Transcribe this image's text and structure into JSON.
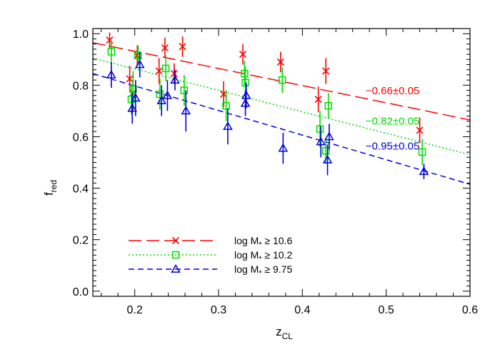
{
  "chart_data": {
    "type": "scatter",
    "xlabel_main": "z",
    "xlabel_sub": "CL",
    "ylabel_main": "f",
    "ylabel_sub": "red",
    "xlim": [
      0.15,
      0.6
    ],
    "ylim": [
      -0.02,
      1.02
    ],
    "x_ticks": [
      0.2,
      0.3,
      0.4,
      0.5,
      0.6
    ],
    "x_tick_labels": [
      "0.2",
      "0.3",
      "0.4",
      "0.5",
      "0.6"
    ],
    "y_ticks": [
      0.0,
      0.2,
      0.4,
      0.6,
      0.8,
      1.0
    ],
    "y_tick_labels": [
      "0.0",
      "0.2",
      "0.4",
      "0.6",
      "0.8",
      "1.0"
    ],
    "grid": false,
    "legend_position": "bottom-left",
    "series": [
      {
        "key": "red",
        "name_prefix": "log M",
        "name_star": "*",
        "name_relation": "≥",
        "name_value": "10.6",
        "color": "#ff0000",
        "marker": "x",
        "line_style": "long-dash",
        "fit": {
          "x": [
            0.15,
            0.6
          ],
          "y": [
            0.965,
            0.665
          ]
        },
        "slope_label": "−0.66±0.05",
        "points": [
          {
            "x": 0.17,
            "y": 0.975,
            "err": 0.03
          },
          {
            "x": 0.194,
            "y": 0.825,
            "err": 0.05
          },
          {
            "x": 0.198,
            "y": 0.77,
            "err": 0.07
          },
          {
            "x": 0.203,
            "y": 0.915,
            "err": 0.04
          },
          {
            "x": 0.229,
            "y": 0.855,
            "err": 0.05
          },
          {
            "x": 0.236,
            "y": 0.945,
            "err": 0.04
          },
          {
            "x": 0.247,
            "y": 0.845,
            "err": 0.04
          },
          {
            "x": 0.257,
            "y": 0.95,
            "err": 0.04
          },
          {
            "x": 0.306,
            "y": 0.765,
            "err": 0.05
          },
          {
            "x": 0.329,
            "y": 0.92,
            "err": 0.04
          },
          {
            "x": 0.374,
            "y": 0.89,
            "err": 0.04
          },
          {
            "x": 0.419,
            "y": 0.745,
            "err": 0.05
          },
          {
            "x": 0.428,
            "y": 0.855,
            "err": 0.05
          },
          {
            "x": 0.54,
            "y": 0.625,
            "err": 0.05
          }
        ]
      },
      {
        "key": "green",
        "name_prefix": "log M",
        "name_star": "*",
        "name_relation": "≥",
        "name_value": "10.2",
        "color": "#00dd00",
        "marker": "square",
        "line_style": "dotted",
        "fit": {
          "x": [
            0.15,
            0.6
          ],
          "y": [
            0.905,
            0.53
          ]
        },
        "slope_label": "−0.82±0.05",
        "points": [
          {
            "x": 0.172,
            "y": 0.93,
            "err": 0.04
          },
          {
            "x": 0.196,
            "y": 0.745,
            "err": 0.06
          },
          {
            "x": 0.198,
            "y": 0.785,
            "err": 0.07
          },
          {
            "x": 0.204,
            "y": 0.915,
            "err": 0.04
          },
          {
            "x": 0.23,
            "y": 0.765,
            "err": 0.06
          },
          {
            "x": 0.237,
            "y": 0.865,
            "err": 0.05
          },
          {
            "x": 0.259,
            "y": 0.78,
            "err": 0.06
          },
          {
            "x": 0.309,
            "y": 0.72,
            "err": 0.06
          },
          {
            "x": 0.331,
            "y": 0.845,
            "err": 0.05
          },
          {
            "x": 0.332,
            "y": 0.81,
            "err": 0.06
          },
          {
            "x": 0.376,
            "y": 0.82,
            "err": 0.05
          },
          {
            "x": 0.421,
            "y": 0.63,
            "err": 0.07
          },
          {
            "x": 0.428,
            "y": 0.545,
            "err": 0.05
          },
          {
            "x": 0.431,
            "y": 0.72,
            "err": 0.05
          },
          {
            "x": 0.543,
            "y": 0.54,
            "err": 0.05
          }
        ]
      },
      {
        "key": "blue",
        "name_prefix": "log M",
        "name_star": "*",
        "name_relation": "≥",
        "name_value": "9.75",
        "color": "#0000dd",
        "marker": "triangle",
        "line_style": "dashed",
        "fit": {
          "x": [
            0.15,
            0.6
          ],
          "y": [
            0.845,
            0.415
          ]
        },
        "slope_label": "−0.95±0.05",
        "points": [
          {
            "x": 0.172,
            "y": 0.84,
            "err": 0.05
          },
          {
            "x": 0.197,
            "y": 0.71,
            "err": 0.06
          },
          {
            "x": 0.201,
            "y": 0.75,
            "err": 0.07
          },
          {
            "x": 0.206,
            "y": 0.88,
            "err": 0.05
          },
          {
            "x": 0.232,
            "y": 0.74,
            "err": 0.06
          },
          {
            "x": 0.239,
            "y": 0.76,
            "err": 0.06
          },
          {
            "x": 0.248,
            "y": 0.82,
            "err": 0.04
          },
          {
            "x": 0.261,
            "y": 0.7,
            "err": 0.08
          },
          {
            "x": 0.311,
            "y": 0.64,
            "err": 0.07
          },
          {
            "x": 0.332,
            "y": 0.73,
            "err": 0.05
          },
          {
            "x": 0.333,
            "y": 0.76,
            "err": 0.05
          },
          {
            "x": 0.377,
            "y": 0.555,
            "err": 0.06
          },
          {
            "x": 0.422,
            "y": 0.58,
            "err": 0.06
          },
          {
            "x": 0.43,
            "y": 0.51,
            "err": 0.06
          },
          {
            "x": 0.432,
            "y": 0.6,
            "err": 0.05
          },
          {
            "x": 0.545,
            "y": 0.465,
            "err": 0.03
          }
        ]
      }
    ]
  }
}
